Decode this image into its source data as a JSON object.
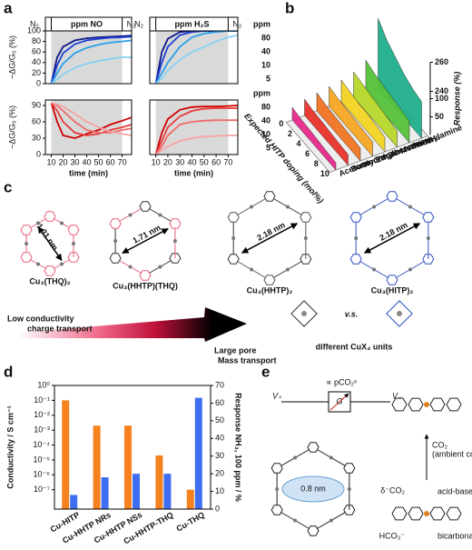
{
  "panel_labels": [
    "a",
    "b",
    "c",
    "d",
    "e"
  ],
  "chart_data": [
    {
      "type": "line",
      "header": {
        "left": "N₂",
        "title": "ppm NO",
        "right": "N₂"
      },
      "ylabel": "−ΔG/G₀ (%)",
      "x": [
        10,
        15,
        20,
        30,
        40,
        50,
        60,
        70,
        78
      ],
      "xlim": [
        5,
        78
      ],
      "ylim": [
        0,
        100
      ],
      "yticks": [
        0,
        20,
        40,
        60,
        80,
        100
      ],
      "exposure": [
        10,
        70
      ],
      "series": [
        {
          "color": "#101a8a",
          "values": [
            0,
            50,
            70,
            82,
            86,
            88,
            89,
            90,
            91
          ]
        },
        {
          "color": "#1e3fd0",
          "values": [
            0,
            35,
            58,
            75,
            82,
            85,
            87,
            88,
            89
          ]
        },
        {
          "color": "#2aa0e8",
          "values": [
            0,
            20,
            38,
            58,
            68,
            74,
            78,
            80,
            82
          ]
        },
        {
          "color": "#86d2f2",
          "values": [
            0,
            8,
            18,
            30,
            38,
            43,
            47,
            50,
            50
          ]
        }
      ]
    },
    {
      "type": "line",
      "header": {
        "left": "N₂",
        "title": "ppm H₂S",
        "right": "N₂"
      },
      "legend_title": "ppm",
      "x": [
        10,
        15,
        20,
        30,
        40,
        50,
        60,
        70,
        78
      ],
      "xlim": [
        5,
        78
      ],
      "ylim": [
        0,
        100
      ],
      "exposure": [
        10,
        70
      ],
      "series": [
        {
          "name": "80",
          "color": "#101a8a",
          "values": [
            0,
            60,
            85,
            98,
            100,
            100,
            100,
            100,
            100
          ]
        },
        {
          "name": "40",
          "color": "#1e3fd0",
          "values": [
            0,
            40,
            70,
            92,
            98,
            100,
            100,
            100,
            100
          ]
        },
        {
          "name": "10",
          "color": "#2aa0e8",
          "values": [
            0,
            20,
            40,
            70,
            88,
            95,
            98,
            100,
            100
          ]
        },
        {
          "name": "5",
          "color": "#86d2f2",
          "values": [
            0,
            10,
            25,
            45,
            60,
            70,
            80,
            88,
            92
          ]
        }
      ]
    },
    {
      "type": "line",
      "ylabel": "−ΔG/G₀ (%)",
      "xlabel": "time (min)",
      "x": [
        10,
        15,
        20,
        30,
        40,
        50,
        60,
        70,
        78
      ],
      "xlim": [
        5,
        78
      ],
      "ylim": [
        0,
        100
      ],
      "yticks": [
        0,
        30,
        60,
        90
      ],
      "xticks": [
        10,
        20,
        30,
        40,
        50,
        60,
        70
      ],
      "exposure": [
        10,
        70
      ],
      "series": [
        {
          "color": "#d00000",
          "values": [
            95,
            60,
            35,
            30,
            38,
            45,
            55,
            62,
            68
          ]
        },
        {
          "color": "#e83a3a",
          "values": [
            95,
            80,
            60,
            40,
            35,
            38,
            45,
            50,
            55
          ]
        },
        {
          "color": "#f06a6a",
          "values": [
            95,
            90,
            80,
            60,
            45,
            40,
            40,
            45,
            48
          ]
        },
        {
          "color": "#f6a3a3",
          "values": [
            95,
            92,
            88,
            75,
            60,
            50,
            42,
            38,
            35
          ]
        }
      ]
    },
    {
      "type": "line",
      "xlabel": "time (min)",
      "legend_title": "ppm",
      "x": [
        10,
        15,
        20,
        30,
        40,
        50,
        60,
        70,
        78
      ],
      "xlim": [
        5,
        78
      ],
      "ylim": [
        0,
        100
      ],
      "xticks": [
        10,
        20,
        30,
        40,
        50,
        60,
        70
      ],
      "exposure": [
        10,
        70
      ],
      "series": [
        {
          "name": "80",
          "color": "#d00000",
          "values": [
            0,
            40,
            65,
            82,
            87,
            88,
            88,
            89,
            90
          ]
        },
        {
          "name": "40",
          "color": "#e83a3a",
          "values": [
            0,
            25,
            50,
            70,
            80,
            84,
            85,
            85,
            85
          ]
        },
        {
          "name": "10",
          "color": "#f06a6a",
          "values": [
            0,
            15,
            35,
            55,
            60,
            62,
            63,
            63,
            63
          ]
        },
        {
          "name": "5",
          "color": "#f6a3a3",
          "values": [
            0,
            8,
            15,
            25,
            30,
            33,
            34,
            35,
            35
          ]
        }
      ]
    },
    {
      "type": "ribbon",
      "xlabel": "Expected HITP doping (mol%)",
      "zlabel": "Response (%)",
      "x": [
        0,
        2,
        4,
        6,
        8,
        10
      ],
      "xticks": [
        0,
        2,
        4,
        6,
        8,
        10
      ],
      "xlim": [
        0,
        10
      ],
      "zlim": [
        0,
        260
      ],
      "zbreak": [
        100,
        240
      ],
      "zticks": [
        50,
        100,
        240,
        260
      ],
      "series": [
        {
          "name": "NH₃",
          "color": "#1fae8c",
          "values": [
            258,
            250,
            245,
            240,
            150,
            100
          ]
        },
        {
          "name": "Triethylamine",
          "color": "#55c23a",
          "values": [
            90,
            80,
            75,
            70,
            65,
            60
          ]
        },
        {
          "name": "Methane",
          "color": "#b6d72a",
          "values": [
            70,
            65,
            60,
            55,
            50,
            45
          ]
        },
        {
          "name": "Benzene",
          "color": "#f2d422",
          "values": [
            60,
            55,
            50,
            50,
            45,
            40
          ]
        },
        {
          "name": "Ethylbenzene",
          "color": "#f5a623",
          "values": [
            55,
            50,
            48,
            45,
            42,
            40
          ]
        },
        {
          "name": "Hydrogen",
          "color": "#f07422",
          "values": [
            50,
            45,
            42,
            40,
            38,
            35
          ]
        },
        {
          "name": "Butanone",
          "color": "#e8322a",
          "values": [
            45,
            40,
            38,
            35,
            32,
            30
          ]
        },
        {
          "name": "Acetone",
          "color": "#e8288a",
          "values": [
            35,
            30,
            28,
            25,
            22,
            20
          ]
        }
      ]
    },
    {
      "type": "bar",
      "categories": [
        "Cu-HITP",
        "Cu-HHTP NRs",
        "Cu-HHTP NSs",
        "Cu-HHTP-THQ",
        "Cu-THQ"
      ],
      "ylabel": "Conductivity / S cm⁻¹",
      "y2label": "Response NH₃, 100 ppm / %",
      "log_y": true,
      "ylim": [
        5e-09,
        1
      ],
      "yticks": [
        {
          "value": 1,
          "label": "10⁰"
        },
        {
          "value": 0.1,
          "label": "10⁻¹"
        },
        {
          "value": 0.01,
          "label": "10⁻²"
        },
        {
          "value": 0.001,
          "label": "10⁻³"
        },
        {
          "value": 0.0001,
          "label": "10⁻⁴"
        },
        {
          "value": 1e-05,
          "label": "10⁻⁵"
        },
        {
          "value": 1e-06,
          "label": "10⁻⁶"
        },
        {
          "value": 1e-07,
          "label": "10⁻⁷"
        }
      ],
      "y2lim": [
        0,
        70
      ],
      "y2ticks": [
        0,
        10,
        20,
        30,
        40,
        50,
        60,
        70
      ],
      "series": [
        {
          "color": "#f5811f",
          "values": [
            0.1,
            0.002,
            0.002,
            2e-05,
            1e-07
          ]
        },
        {
          "color": "#3f6ff0",
          "axis": "y2",
          "values": [
            8,
            18,
            20,
            20,
            63
          ]
        }
      ]
    }
  ],
  "panel_c": {
    "structures": [
      {
        "label": "Cu₃(THQ)₂",
        "pore": "1.31 nm"
      },
      {
        "label": "Cu₃(HHTP)(THQ)",
        "pore": "1.71 nm"
      },
      {
        "label": "Cu₃(HHTP)₂",
        "pore": "2.18 nm"
      },
      {
        "label": "Cu₃(HITP)₂",
        "pore": "2.18 nm"
      }
    ],
    "arrow_left": {
      "title": "Low conductivity",
      "subtitle": "charge transport"
    },
    "arrow_right": {
      "title": "Large pore",
      "subtitle": "Mass transport"
    },
    "versus": "v.s.",
    "units_caption": "different CuX₄ units"
  },
  "panel_e": {
    "v_plus": "V₊",
    "v_minus": "V₋",
    "conductance": "G",
    "proportional": "∝ pCO₂ˣ",
    "pore": "0.8 nm",
    "reactant": "CO₂",
    "condition": "(ambient conditions)",
    "adduct_species": "δ⁻CO₂",
    "adduct": "acid-base adduct",
    "salt_species": "HCO₃⁻",
    "salt": "bicarbonate salt"
  }
}
